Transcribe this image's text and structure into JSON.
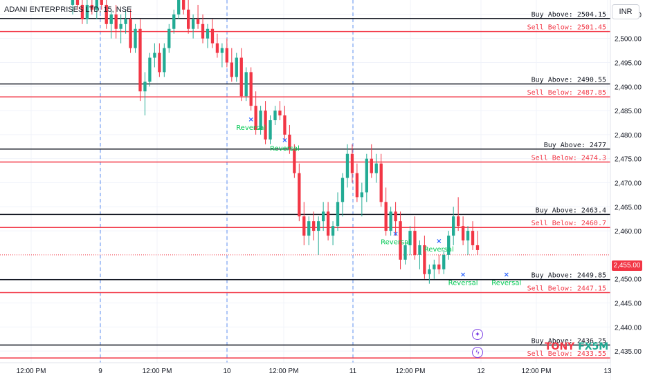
{
  "header": {
    "symbol_title": "ADANI ENTERPRISES LTD, 15, NSE",
    "currency_button": "INR"
  },
  "current_price": {
    "label": "2,455.00",
    "value": 2455.0
  },
  "brand": {
    "part1": "TONY",
    "part2": "FX5M"
  },
  "colors": {
    "up": "#22ab94",
    "down": "#f23645",
    "buy_line": "#131722",
    "sell_line": "#f23645",
    "reversal_marker": "#2962ff",
    "reversal_text": "#00c853",
    "grid": "#f0f3fa",
    "accent_purple": "#7b3fe4"
  },
  "chart_data": {
    "type": "candlestick",
    "y_axis": {
      "range": [
        2433,
        2510
      ],
      "ticks": [
        2505,
        2500,
        2495,
        2490,
        2485,
        2480,
        2475,
        2470,
        2465,
        2460,
        2450,
        2445,
        2440,
        2435
      ],
      "tick_labels": [
        "2,505.00",
        "2,500.00",
        "2,495.00",
        "2,490.00",
        "2,485.00",
        "2,480.00",
        "2,475.00",
        "2,470.00",
        "2,465.00",
        "2,460.00",
        "2,450.00",
        "2,445.00",
        "2,440.00",
        "2,435.00"
      ]
    },
    "x_axis": {
      "labels": [
        "12:00 PM",
        "9",
        "12:00 PM",
        "10",
        "12:00 PM",
        "11",
        "12:00 PM",
        "12",
        "12:00 PM",
        "13"
      ],
      "session_divider_indices": [
        1,
        3,
        5
      ]
    },
    "levels": [
      {
        "kind": "buy",
        "value": 2504.15,
        "label": "Buy Above: 2504.15"
      },
      {
        "kind": "sell",
        "value": 2501.45,
        "label": "Sell Below: 2501.45"
      },
      {
        "kind": "buy",
        "value": 2490.55,
        "label": "Buy Above: 2490.55"
      },
      {
        "kind": "sell",
        "value": 2487.85,
        "label": "Sell Below: 2487.85"
      },
      {
        "kind": "buy",
        "value": 2477,
        "label": "Buy Above: 2477"
      },
      {
        "kind": "sell",
        "value": 2474.3,
        "label": "Sell Below: 2474.3"
      },
      {
        "kind": "buy",
        "value": 2463.4,
        "label": "Buy Above: 2463.4"
      },
      {
        "kind": "sell",
        "value": 2460.7,
        "label": "Sell Below: 2460.7"
      },
      {
        "kind": "buy",
        "value": 2449.85,
        "label": "Buy Above: 2449.85"
      },
      {
        "kind": "sell",
        "value": 2447.15,
        "label": "Sell Below: 2447.15"
      },
      {
        "kind": "buy",
        "value": 2436.25,
        "label": "Buy Above: 2436.25"
      },
      {
        "kind": "sell",
        "value": 2433.55,
        "label": "Sell Below: 2433.55"
      }
    ],
    "reversals": [
      {
        "candle": 37,
        "price": 2483.3,
        "label": "Reversal"
      },
      {
        "candle": 44,
        "price": 2479.0,
        "label": "Reversal"
      },
      {
        "candle": 67,
        "price": 2459.5,
        "label": "Reversal"
      },
      {
        "candle": 76,
        "price": 2458.0,
        "label": "Reversal"
      },
      {
        "candle": 81,
        "price": 2451.0,
        "label": "Reversal"
      },
      {
        "candle": 90,
        "price": 2451.0,
        "label": "Reversal"
      }
    ],
    "candles": [
      [
        2507,
        2510,
        2505,
        2508
      ],
      [
        2508,
        2511,
        2506,
        2507
      ],
      [
        2507,
        2509,
        2503,
        2504
      ],
      [
        2504,
        2508,
        2503,
        2507
      ],
      [
        2507,
        2510,
        2505,
        2506
      ],
      [
        2506,
        2509,
        2504,
        2508
      ],
      [
        2508,
        2510,
        2506,
        2507
      ],
      [
        2507,
        2509,
        2502,
        2503
      ],
      [
        2503,
        2506,
        2500,
        2505
      ],
      [
        2505,
        2507,
        2500,
        2502
      ],
      [
        2502,
        2505,
        2499,
        2503
      ],
      [
        2503,
        2506,
        2501,
        2504
      ],
      [
        2504,
        2506,
        2497,
        2498
      ],
      [
        2498,
        2503,
        2497,
        2502
      ],
      [
        2502,
        2504,
        2487,
        2489
      ],
      [
        2489,
        2493,
        2484,
        2491
      ],
      [
        2491,
        2497,
        2490,
        2496
      ],
      [
        2496,
        2499,
        2494,
        2497
      ],
      [
        2497,
        2499,
        2492,
        2493
      ],
      [
        2493,
        2499,
        2492,
        2498
      ],
      [
        2498,
        2503,
        2497,
        2502
      ],
      [
        2502,
        2506,
        2501,
        2505
      ],
      [
        2505,
        2509,
        2504,
        2508
      ],
      [
        2508,
        2510,
        2505,
        2506
      ],
      [
        2506,
        2508,
        2501,
        2502
      ],
      [
        2502,
        2505,
        2500,
        2504
      ],
      [
        2504,
        2507,
        2502,
        2503
      ],
      [
        2503,
        2505,
        2499,
        2500
      ],
      [
        2500,
        2503,
        2498,
        2502
      ],
      [
        2502,
        2504,
        2498,
        2499
      ],
      [
        2499,
        2501,
        2496,
        2497
      ],
      [
        2497,
        2499,
        2494,
        2498
      ],
      [
        2498,
        2500,
        2494,
        2495
      ],
      [
        2495,
        2498,
        2491,
        2492
      ],
      [
        2492,
        2497,
        2491,
        2496
      ],
      [
        2496,
        2498,
        2487,
        2488
      ],
      [
        2488,
        2494,
        2487,
        2493
      ],
      [
        2493,
        2494,
        2485,
        2486
      ],
      [
        2486,
        2489,
        2480,
        2481
      ],
      [
        2481,
        2486,
        2480,
        2485
      ],
      [
        2485,
        2487,
        2478,
        2479
      ],
      [
        2479,
        2484,
        2478,
        2483
      ],
      [
        2483,
        2486,
        2482,
        2485
      ],
      [
        2485,
        2487,
        2483,
        2484
      ],
      [
        2484,
        2486,
        2479,
        2480
      ],
      [
        2480,
        2482,
        2476,
        2477
      ],
      [
        2477,
        2478,
        2471,
        2472
      ],
      [
        2472,
        2474,
        2462,
        2463
      ],
      [
        2463,
        2466,
        2457,
        2459
      ],
      [
        2459,
        2463,
        2457,
        2462
      ],
      [
        2462,
        2464,
        2458,
        2460
      ],
      [
        2460,
        2463,
        2455,
        2462
      ],
      [
        2462,
        2466,
        2460,
        2464
      ],
      [
        2464,
        2466,
        2458,
        2459
      ],
      [
        2459,
        2462,
        2457,
        2461
      ],
      [
        2461,
        2468,
        2460,
        2466
      ],
      [
        2466,
        2472,
        2463,
        2471
      ],
      [
        2471,
        2478,
        2469,
        2476
      ],
      [
        2476,
        2478,
        2470,
        2472
      ],
      [
        2472,
        2474,
        2466,
        2467
      ],
      [
        2467,
        2470,
        2463,
        2468
      ],
      [
        2468,
        2476,
        2466,
        2475
      ],
      [
        2475,
        2478,
        2471,
        2472
      ],
      [
        2472,
        2476,
        2470,
        2474
      ],
      [
        2474,
        2476,
        2465,
        2466
      ],
      [
        2466,
        2469,
        2459,
        2460
      ],
      [
        2460,
        2465,
        2459,
        2464
      ],
      [
        2464,
        2466,
        2459,
        2462
      ],
      [
        2462,
        2464,
        2452,
        2454
      ],
      [
        2454,
        2458,
        2453,
        2457
      ],
      [
        2457,
        2461,
        2455,
        2460
      ],
      [
        2460,
        2463,
        2454,
        2455
      ],
      [
        2455,
        2458,
        2452,
        2457
      ],
      [
        2457,
        2459,
        2450,
        2451
      ],
      [
        2451,
        2453,
        2449,
        2452
      ],
      [
        2452,
        2454,
        2450,
        2453
      ],
      [
        2453,
        2455,
        2451,
        2452
      ],
      [
        2452,
        2456,
        2451,
        2455
      ],
      [
        2455,
        2460,
        2454,
        2459
      ],
      [
        2459,
        2465,
        2457,
        2463
      ],
      [
        2463,
        2467,
        2460,
        2461
      ],
      [
        2461,
        2463,
        2457,
        2458
      ],
      [
        2458,
        2461,
        2455,
        2460
      ],
      [
        2460,
        2462,
        2456,
        2457
      ],
      [
        2457,
        2460,
        2455,
        2456
      ]
    ]
  }
}
